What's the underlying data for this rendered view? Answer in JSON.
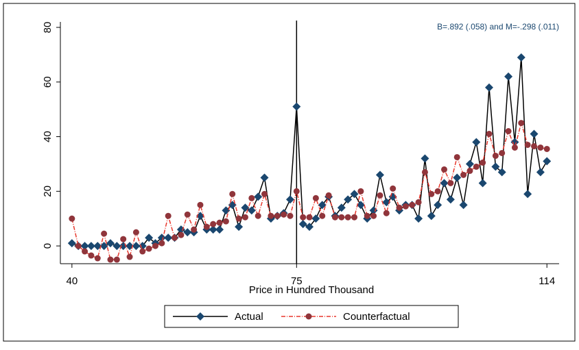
{
  "chart_data": {
    "type": "line",
    "annotation": "B=.892 (.058) and M=-.298 (.011)",
    "xlabel": "Price in Hundred Thousand",
    "x": [
      40,
      41,
      42,
      43,
      44,
      45,
      46,
      47,
      48,
      49,
      50,
      51,
      52,
      53,
      54,
      55,
      56,
      57,
      58,
      59,
      60,
      61,
      62,
      63,
      64,
      65,
      66,
      67,
      68,
      69,
      70,
      71,
      72,
      73,
      74,
      75,
      76,
      77,
      78,
      79,
      80,
      81,
      82,
      83,
      84,
      85,
      86,
      87,
      88,
      89,
      90,
      91,
      92,
      93,
      94,
      95,
      96,
      97,
      98,
      99,
      100,
      101,
      102,
      103,
      104,
      105,
      106,
      107,
      108,
      109,
      110,
      111,
      112,
      113,
      114
    ],
    "series": [
      {
        "name": "Actual",
        "color": "#1a476f",
        "line_color": "#000000",
        "dash": false,
        "marker": "diamond",
        "values": [
          1,
          0,
          0,
          0,
          0,
          0,
          1,
          0,
          0,
          0,
          0,
          0,
          3,
          1,
          3,
          3,
          3,
          6,
          5,
          5,
          11,
          6,
          6,
          6,
          13,
          15,
          7,
          14,
          13,
          18,
          25,
          10,
          11,
          12,
          17,
          51,
          8,
          7,
          10,
          15,
          18,
          11,
          14,
          17,
          19,
          15,
          10,
          13,
          26,
          16,
          18,
          13,
          15,
          15,
          10,
          32,
          11,
          15,
          23,
          17,
          25,
          15,
          30,
          38,
          23,
          58,
          29,
          27,
          62,
          38,
          69,
          19,
          41,
          27,
          31
        ]
      },
      {
        "name": "Counterfactual",
        "color": "#90353b",
        "line_color": "#e8372c",
        "dash": true,
        "marker": "circle",
        "values": [
          10,
          0,
          -2,
          -3.5,
          -4.5,
          4.5,
          -5,
          -5,
          2.5,
          -4,
          5,
          -2,
          -1,
          0,
          1,
          11,
          3,
          4,
          11.5,
          6,
          15,
          7,
          8,
          8.5,
          9,
          19,
          10,
          10.5,
          17.5,
          11,
          19,
          11,
          11,
          11.5,
          11,
          20,
          10.5,
          10.5,
          17.5,
          11,
          18.5,
          10.5,
          10.5,
          10.5,
          10.5,
          20,
          11,
          11,
          18.5,
          12,
          21,
          14,
          14.5,
          15,
          16,
          27,
          19,
          20,
          28,
          23,
          32.5,
          26,
          27.5,
          29,
          30.5,
          41,
          33,
          34,
          42,
          36,
          45,
          37,
          36.5,
          36,
          35.5
        ]
      }
    ],
    "vline": 75,
    "xlim": [
      38.2,
      115.9
    ],
    "ylim": [
      -6.5,
      82
    ],
    "xticks": [
      40,
      75,
      114
    ],
    "yticks": [
      0,
      20,
      40,
      60,
      80
    ]
  }
}
